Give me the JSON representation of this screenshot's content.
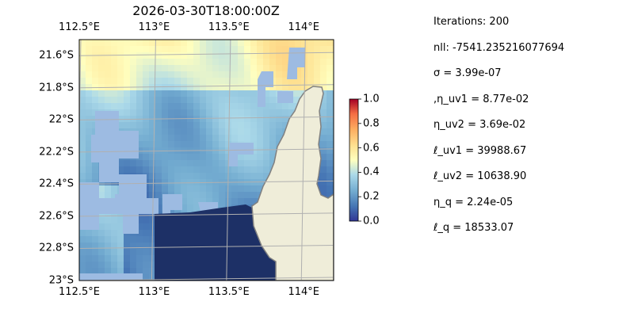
{
  "title": "2026-03-30T18:00:00Z",
  "map": {
    "lon_ticks": [
      "112.5°E",
      "113°E",
      "113.5°E",
      "114°E"
    ],
    "lon_values": [
      112.5,
      113.0,
      113.5,
      114.0
    ],
    "lat_ticks": [
      "21.6°S",
      "21.8°S",
      "22°S",
      "22.2°S",
      "22.4°S",
      "22.6°S",
      "22.8°S",
      "23°S"
    ],
    "lat_values": [
      -21.6,
      -21.8,
      -22.0,
      -22.2,
      -22.4,
      -22.6,
      -22.8,
      -23.0
    ],
    "lon_range": [
      112.5,
      114.2
    ],
    "lat_range": [
      -23.0,
      -21.5
    ],
    "land_color": "#efedd9",
    "ocean_mask_color": "#9dbbe2",
    "colormap": "RdYlBu_r",
    "gridlines": true
  },
  "colorbar": {
    "ticks": [
      "0.0",
      "0.2",
      "0.4",
      "0.6",
      "0.8",
      "1.0"
    ],
    "range": [
      0,
      1
    ]
  },
  "stats": [
    "Iterations: 200",
    "nll: -7541.235216077694",
    "σ = 3.99e-07",
    ",η_uv1 = 8.77e-02",
    "η_uv2 = 3.69e-02",
    "ℓ_uv1 = 39988.67",
    "ℓ_uv2 = 10638.90",
    "η_q = 2.24e-05",
    "ℓ_q = 18533.07"
  ]
}
